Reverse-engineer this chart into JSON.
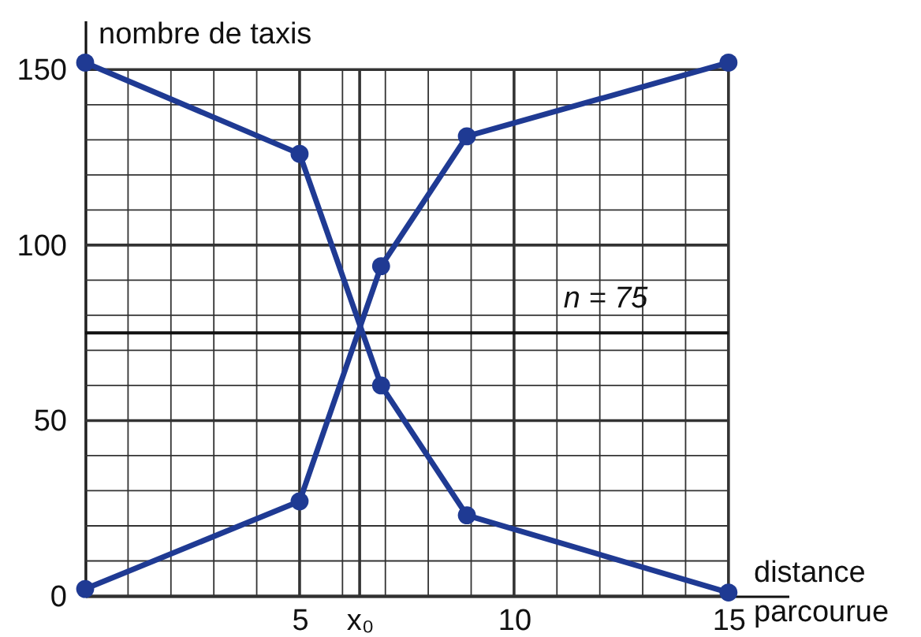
{
  "chart_data": {
    "type": "line",
    "ylabel": "nombre de taxis",
    "xlabel": "distance parcourue",
    "x": [
      0,
      5,
      6.9,
      8.9,
      15
    ],
    "series": [
      {
        "color": "#1f3a93",
        "values": [
          2,
          27,
          94,
          131,
          152
        ]
      },
      {
        "color": "#1f3a93",
        "values": [
          152,
          126,
          60,
          23,
          1
        ]
      }
    ],
    "xlim": [
      0,
      16.4
    ],
    "ylim": [
      0,
      164
    ],
    "xticks": [
      {
        "value": 0,
        "label": null
      },
      {
        "value": 1,
        "label": null
      },
      {
        "value": 2,
        "label": null
      },
      {
        "value": 3,
        "label": null
      },
      {
        "value": 4,
        "label": null
      },
      5,
      {
        "value": 6,
        "label": null
      },
      {
        "value": 6.4,
        "label": "x₀"
      },
      {
        "value": 7,
        "label": null
      },
      {
        "value": 8,
        "label": null
      },
      {
        "value": 9,
        "label": null
      },
      10,
      {
        "value": 11,
        "label": null
      },
      {
        "value": 12,
        "label": null
      },
      {
        "value": 13,
        "label": null
      },
      {
        "value": 14,
        "label": null
      },
      15
    ],
    "yticks": [
      0,
      {
        "value": 10,
        "label": null
      },
      {
        "value": 20,
        "label": null
      },
      {
        "value": 30,
        "label": null
      },
      {
        "value": 40,
        "label": null
      },
      50,
      {
        "value": 60,
        "label": null
      },
      {
        "value": 70,
        "label": null
      },
      {
        "value": 80,
        "label": null
      },
      {
        "value": 90,
        "label": null
      },
      100,
      {
        "value": 110,
        "label": null
      },
      {
        "value": 120,
        "label": null
      },
      {
        "value": 130,
        "label": null
      },
      {
        "value": 140,
        "label": null
      },
      150
    ],
    "grid": true,
    "marker": "circle",
    "line_style": "solid",
    "ref_lines": [
      {
        "axis": "y",
        "value": 75,
        "label": "n = 75"
      }
    ]
  }
}
